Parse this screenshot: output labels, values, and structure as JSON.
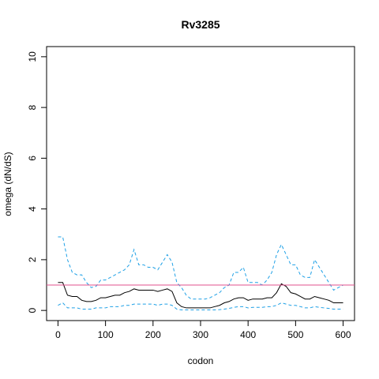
{
  "chart_data": {
    "type": "line",
    "title": "Rv3285",
    "x_label": "codon",
    "y_label": "omega (dN/dS)",
    "x": [
      0,
      10,
      20,
      30,
      40,
      50,
      60,
      70,
      80,
      90,
      100,
      110,
      120,
      130,
      140,
      150,
      160,
      170,
      180,
      190,
      200,
      210,
      220,
      230,
      240,
      250,
      260,
      270,
      280,
      290,
      300,
      310,
      320,
      330,
      340,
      350,
      360,
      370,
      380,
      390,
      400,
      410,
      420,
      430,
      440,
      450,
      460,
      470,
      480,
      490,
      500,
      510,
      520,
      530,
      540,
      550,
      560,
      570,
      580,
      590,
      600
    ],
    "series": [
      {
        "color": "#1ea0e6",
        "dash": true,
        "values": [
          2.9,
          2.9,
          2.0,
          1.5,
          1.4,
          1.4,
          1.1,
          0.9,
          0.95,
          1.2,
          1.2,
          1.3,
          1.4,
          1.5,
          1.6,
          1.8,
          2.4,
          1.8,
          1.8,
          1.7,
          1.7,
          1.6,
          1.9,
          2.2,
          1.9,
          1.1,
          0.9,
          0.6,
          0.45,
          0.45,
          0.45,
          0.45,
          0.5,
          0.6,
          0.7,
          0.9,
          1.0,
          1.5,
          1.5,
          1.7,
          1.1,
          1.1,
          1.1,
          1.0,
          1.2,
          1.5,
          2.2,
          2.6,
          2.2,
          1.8,
          1.8,
          1.4,
          1.3,
          1.3,
          2.0,
          1.7,
          1.4,
          1.1,
          0.8,
          0.9,
          1.0
        ]
      },
      {
        "color": "#000000",
        "dash": false,
        "values": [
          1.1,
          1.1,
          0.6,
          0.55,
          0.55,
          0.4,
          0.35,
          0.35,
          0.4,
          0.5,
          0.5,
          0.55,
          0.6,
          0.6,
          0.7,
          0.75,
          0.85,
          0.8,
          0.8,
          0.8,
          0.8,
          0.75,
          0.8,
          0.85,
          0.75,
          0.3,
          0.15,
          0.1,
          0.1,
          0.1,
          0.1,
          0.1,
          0.1,
          0.15,
          0.2,
          0.3,
          0.35,
          0.45,
          0.5,
          0.5,
          0.4,
          0.45,
          0.45,
          0.45,
          0.5,
          0.5,
          0.7,
          1.05,
          0.95,
          0.7,
          0.65,
          0.55,
          0.45,
          0.45,
          0.55,
          0.5,
          0.45,
          0.4,
          0.3,
          0.3,
          0.3
        ]
      },
      {
        "color": "#1ea0e6",
        "dash": true,
        "values": [
          0.2,
          0.3,
          0.1,
          0.1,
          0.1,
          0.05,
          0.05,
          0.05,
          0.1,
          0.1,
          0.1,
          0.15,
          0.15,
          0.15,
          0.2,
          0.2,
          0.25,
          0.25,
          0.25,
          0.25,
          0.25,
          0.2,
          0.25,
          0.25,
          0.2,
          0.05,
          0.02,
          0.02,
          0.02,
          0.02,
          0.02,
          0.02,
          0.02,
          0.02,
          0.03,
          0.05,
          0.08,
          0.12,
          0.15,
          0.15,
          0.1,
          0.12,
          0.12,
          0.12,
          0.15,
          0.15,
          0.2,
          0.3,
          0.25,
          0.2,
          0.2,
          0.15,
          0.1,
          0.1,
          0.15,
          0.12,
          0.1,
          0.08,
          0.05,
          0.05,
          0.05
        ]
      }
    ],
    "reference_line": {
      "value": 1,
      "color": "#e0508c"
    },
    "xlim": [
      -24,
      624
    ],
    "ylim": [
      -0.4,
      10.4
    ],
    "xticks": [
      0,
      100,
      200,
      300,
      400,
      500,
      600
    ],
    "yticks": [
      0,
      2,
      4,
      6,
      8,
      10
    ]
  }
}
